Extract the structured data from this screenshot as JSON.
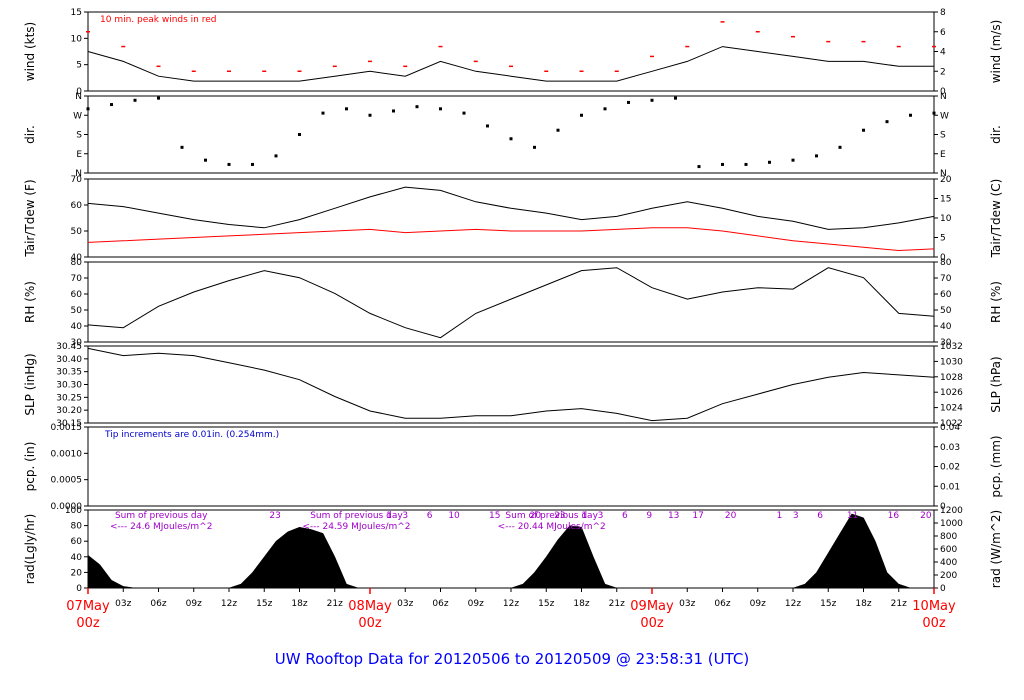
{
  "colors": {
    "axis": "#000000",
    "red": "#ff0000",
    "blue": "#0000cc",
    "purple": "#a000c8",
    "footer": "#0000ff"
  },
  "footer": {
    "title": "UW Rooftop Data for 20120506  to  20120509 @ 23:58:31  (UTC)"
  },
  "chart_data": [
    {
      "type": "line",
      "panel": "wind",
      "ylabel": "wind (kts)",
      "ylabel_right": "wind (m/s)",
      "ylim": [
        0,
        16
      ],
      "yticks": [
        "0",
        "5",
        "10",
        "15"
      ],
      "yticks_right": [
        "0",
        "2",
        "4",
        "6",
        "8"
      ],
      "annotation": "10 min. peak winds in red",
      "x": [
        0,
        3,
        6,
        9,
        12,
        15,
        18,
        21,
        24,
        27,
        30,
        33,
        36,
        39,
        42,
        45,
        48,
        51,
        54,
        57,
        60,
        63,
        66,
        69,
        72
      ],
      "series": [
        {
          "values": [
            8,
            6,
            3,
            2,
            2,
            2,
            2,
            3,
            4,
            3,
            6,
            4,
            3,
            2,
            2,
            2,
            4,
            6,
            9,
            8,
            7,
            6,
            6,
            5,
            5
          ]
        },
        {
          "values": [
            12,
            9,
            5,
            4,
            4,
            4,
            4,
            5,
            6,
            5,
            9,
            6,
            5,
            4,
            4,
            4,
            7,
            9,
            14,
            12,
            11,
            10,
            10,
            9,
            9
          ]
        }
      ]
    },
    {
      "type": "scatter",
      "panel": "dir",
      "ylabel": "dir.",
      "ylabel_right": "dir.",
      "ylim": [
        0,
        360
      ],
      "yticks": [
        "N",
        "E",
        "S",
        "W",
        "N"
      ],
      "x": [
        0,
        2,
        4,
        6,
        8,
        10,
        12,
        14,
        16,
        18,
        20,
        22,
        24,
        26,
        28,
        30,
        32,
        34,
        36,
        38,
        40,
        42,
        44,
        46,
        48,
        50,
        52,
        54,
        56,
        58,
        60,
        62,
        64,
        66,
        68,
        70,
        72
      ],
      "series": [
        {
          "values": [
            300,
            320,
            340,
            350,
            120,
            60,
            40,
            40,
            80,
            180,
            280,
            300,
            270,
            290,
            310,
            300,
            280,
            220,
            160,
            120,
            200,
            270,
            300,
            330,
            340,
            350,
            30,
            40,
            40,
            50,
            60,
            80,
            120,
            200,
            240,
            270,
            280
          ]
        }
      ]
    },
    {
      "type": "line",
      "panel": "temp",
      "ylabel": "Tair/Tdew (F)",
      "ylabel_right": "Tair/Tdew (C)",
      "ylim": [
        30,
        78
      ],
      "yticks": [
        "40",
        "50",
        "60",
        "70"
      ],
      "yticks_right": [
        "0",
        "5",
        "10",
        "15",
        "20"
      ],
      "x": [
        0,
        3,
        6,
        9,
        12,
        15,
        18,
        21,
        24,
        27,
        30,
        33,
        36,
        39,
        42,
        45,
        48,
        51,
        54,
        57,
        60,
        63,
        66,
        69,
        72
      ],
      "series": [
        {
          "values": [
            63,
            61,
            57,
            53,
            50,
            48,
            53,
            60,
            67,
            73,
            71,
            64,
            60,
            57,
            53,
            55,
            60,
            64,
            60,
            55,
            52,
            47,
            48,
            51,
            55
          ]
        },
        {
          "values": [
            39,
            40,
            41,
            42,
            43,
            44,
            45,
            46,
            47,
            45,
            46,
            47,
            46,
            46,
            46,
            47,
            48,
            48,
            46,
            43,
            40,
            38,
            36,
            34,
            35
          ]
        }
      ]
    },
    {
      "type": "line",
      "panel": "rh",
      "ylabel": "RH (%)",
      "ylabel_right": "RH (%)",
      "ylim": [
        30,
        86
      ],
      "yticks": [
        "30",
        "40",
        "50",
        "60",
        "70",
        "80"
      ],
      "x": [
        0,
        3,
        6,
        9,
        12,
        15,
        18,
        21,
        24,
        27,
        30,
        33,
        36,
        39,
        42,
        45,
        48,
        51,
        54,
        57,
        60,
        63,
        66,
        69,
        72
      ],
      "series": [
        {
          "values": [
            42,
            40,
            55,
            65,
            73,
            80,
            75,
            64,
            50,
            40,
            33,
            50,
            60,
            70,
            80,
            82,
            68,
            60,
            65,
            68,
            67,
            82,
            75,
            50,
            48
          ]
        }
      ]
    },
    {
      "type": "line",
      "panel": "slp",
      "ylabel": "SLP (inHg)",
      "ylabel_right": "SLP (hPa)",
      "ylim": [
        30.15,
        30.47
      ],
      "yticks": [
        "30.15",
        "30.20",
        "30.25",
        "30.30",
        "30.35",
        "30.40",
        "30.45"
      ],
      "yticks_right": [
        "1022",
        "1024",
        "1026",
        "1028",
        "1030",
        "1032"
      ],
      "x": [
        0,
        3,
        6,
        9,
        12,
        15,
        18,
        21,
        24,
        27,
        30,
        33,
        36,
        39,
        42,
        45,
        48,
        51,
        54,
        57,
        60,
        63,
        66,
        69,
        72
      ],
      "series": [
        {
          "values": [
            30.46,
            30.43,
            30.44,
            30.43,
            30.4,
            30.37,
            30.33,
            30.26,
            30.2,
            30.17,
            30.17,
            30.18,
            30.18,
            30.2,
            30.21,
            30.19,
            30.16,
            30.17,
            30.23,
            30.27,
            30.31,
            30.34,
            30.36,
            30.35,
            30.34
          ]
        }
      ]
    },
    {
      "type": "line",
      "panel": "pcp",
      "ylabel": "pcp. (in)",
      "ylabel_right": "pcp. (mm)",
      "ylim": [
        0,
        0.0018
      ],
      "yticks": [
        "0.0000",
        "0.0005",
        "0.0010",
        "0.0015"
      ],
      "yticks_right": [
        "0",
        "0.01",
        "0.02",
        "0.03",
        "0.04"
      ],
      "annotation": "Tip increments are 0.01in. (0.254mm.)",
      "x": [
        0,
        72
      ],
      "series": [
        {
          "values": [
            0,
            0
          ]
        }
      ]
    },
    {
      "type": "area",
      "panel": "rad",
      "ylabel": "rad(Lgly/hr)",
      "ylabel_right": "rad (W/m^2)",
      "ylim": [
        0,
        100
      ],
      "yticks": [
        "0",
        "20",
        "40",
        "60",
        "80",
        "100"
      ],
      "yticks_right": [
        "0",
        "200",
        "400",
        "600",
        "800",
        "1000",
        "1200"
      ],
      "hour_labels": [
        {
          "x": 23,
          "t": "23"
        },
        {
          "x": 37,
          "t": "1"
        },
        {
          "x": 39,
          "t": "3"
        },
        {
          "x": 42,
          "t": "6"
        },
        {
          "x": 45,
          "t": "10"
        },
        {
          "x": 50,
          "t": "15"
        },
        {
          "x": 55,
          "t": "20"
        },
        {
          "x": 58,
          "t": "23"
        },
        {
          "x": 61,
          "t": "1"
        },
        {
          "x": 63,
          "t": "3"
        },
        {
          "x": 66,
          "t": "6"
        },
        {
          "x": 69,
          "t": "9"
        },
        {
          "x": 72,
          "t": "13"
        },
        {
          "x": 75,
          "t": "17"
        },
        {
          "x": 79,
          "t": "20"
        },
        {
          "x": 85,
          "t": "1"
        },
        {
          "x": 87,
          "t": "3"
        },
        {
          "x": 90,
          "t": "6"
        },
        {
          "x": 94,
          "t": "11"
        },
        {
          "x": 99,
          "t": "16"
        },
        {
          "x": 103,
          "t": "20"
        }
      ],
      "day_sums": [
        {
          "x": 3,
          "line1": "Sum of previous day",
          "line2": "<--- 24.6 MJoules/m^2"
        },
        {
          "x": 27,
          "line1": "Sum of previous day",
          "line2": "<--- 24.59 MJoules/m^2"
        },
        {
          "x": 51,
          "line1": "Sum of previous day",
          "line2": "<--- 20.44 MJoules/m^2"
        }
      ],
      "x": [
        0,
        1,
        2,
        3,
        4,
        5,
        6,
        7,
        8,
        9,
        10,
        11,
        12,
        13,
        14,
        15,
        16,
        17,
        18,
        19,
        20,
        21,
        22,
        23,
        24,
        25,
        26,
        27,
        28,
        29,
        30,
        31,
        32,
        33,
        34,
        35,
        36,
        37,
        38,
        39,
        40,
        41,
        42,
        43,
        44,
        45,
        46,
        47,
        48,
        49,
        50,
        51,
        52,
        53,
        54,
        55,
        56,
        57,
        58,
        59,
        60,
        61,
        62,
        63,
        64,
        65,
        66,
        67,
        68,
        69,
        70,
        71,
        72
      ],
      "series": [
        {
          "values": [
            42,
            30,
            10,
            2,
            0,
            0,
            0,
            0,
            0,
            0,
            0,
            0,
            0,
            5,
            20,
            40,
            60,
            72,
            78,
            75,
            70,
            40,
            5,
            0,
            0,
            0,
            0,
            0,
            0,
            0,
            0,
            0,
            0,
            0,
            0,
            0,
            0,
            5,
            20,
            40,
            62,
            80,
            78,
            40,
            5,
            0,
            0,
            0,
            0,
            0,
            0,
            0,
            0,
            0,
            0,
            0,
            0,
            0,
            0,
            0,
            0,
            5,
            20,
            45,
            70,
            95,
            90,
            60,
            20,
            5,
            0,
            0,
            0
          ]
        }
      ]
    }
  ],
  "x_axis": {
    "range": [
      0,
      72
    ],
    "minor_ticks": [
      {
        "x": 3,
        "t": "03z"
      },
      {
        "x": 6,
        "t": "06z"
      },
      {
        "x": 9,
        "t": "09z"
      },
      {
        "x": 12,
        "t": "12z"
      },
      {
        "x": 15,
        "t": "15z"
      },
      {
        "x": 18,
        "t": "18z"
      },
      {
        "x": 21,
        "t": "21z"
      },
      {
        "x": 27,
        "t": "03z"
      },
      {
        "x": 30,
        "t": "06z"
      },
      {
        "x": 33,
        "t": "09z"
      },
      {
        "x": 36,
        "t": "12z"
      },
      {
        "x": 39,
        "t": "15z"
      },
      {
        "x": 42,
        "t": "18z"
      },
      {
        "x": 45,
        "t": "21z"
      },
      {
        "x": 51,
        "t": "03z"
      },
      {
        "x": 54,
        "t": "06z"
      },
      {
        "x": 57,
        "t": "09z"
      },
      {
        "x": 60,
        "t": "12z"
      },
      {
        "x": 63,
        "t": "15z"
      },
      {
        "x": 66,
        "t": "18z"
      },
      {
        "x": 69,
        "t": "21z"
      }
    ],
    "day_ticks": [
      {
        "x": 0,
        "date": "07May",
        "hour": "00z"
      },
      {
        "x": 24,
        "date": "08May",
        "hour": "00z"
      },
      {
        "x": 48,
        "date": "09May",
        "hour": "00z"
      },
      {
        "x": 72,
        "date": "10May",
        "hour": "00z"
      }
    ]
  }
}
